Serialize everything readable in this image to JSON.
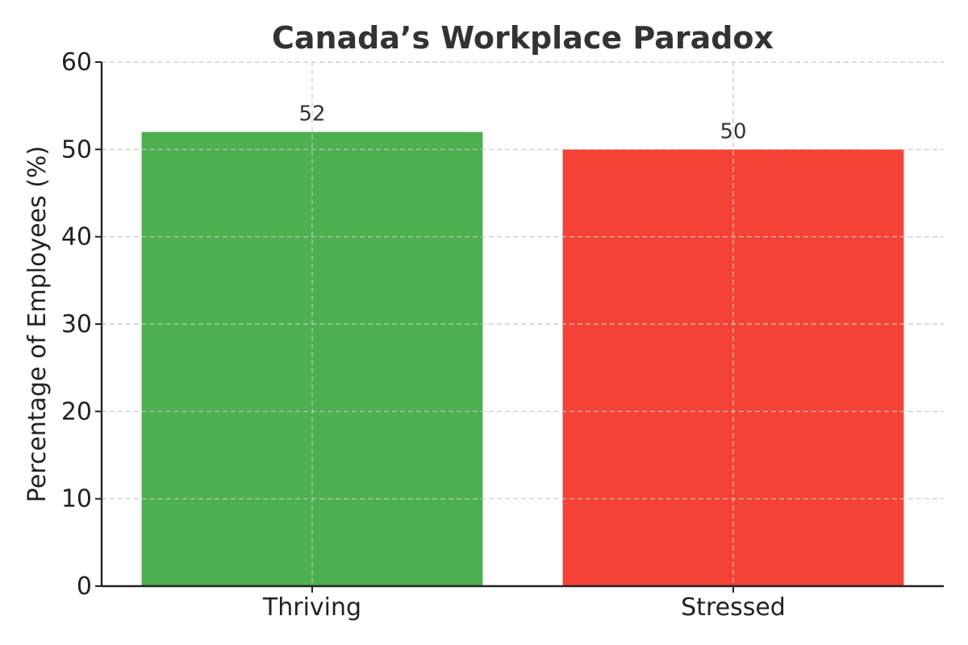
{
  "chart_data": {
    "type": "bar",
    "title": "Canada’s Workplace Paradox",
    "xlabel": "",
    "ylabel": "Percentage of Employees (%)",
    "categories": [
      "Thriving",
      "Stressed"
    ],
    "values": [
      52,
      50
    ],
    "data_labels": [
      "52",
      "50"
    ],
    "colors": [
      "#4caf50",
      "#f44336"
    ],
    "ylim": [
      0,
      60
    ],
    "yticks": [
      0,
      10,
      20,
      30,
      40,
      50,
      60
    ],
    "grid": true
  }
}
